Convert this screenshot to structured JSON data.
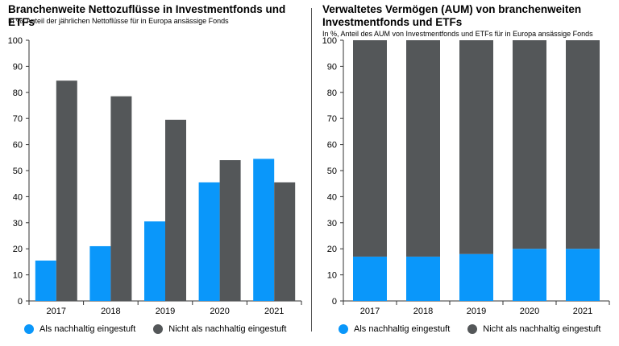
{
  "colors": {
    "sustainable": "#0a97fa",
    "not_sustainable": "#545759"
  },
  "legend": {
    "sustainable": "Als nachhaltig eingestuft",
    "not_sustainable": "Nicht als nachhaltig eingestuft"
  },
  "chart_data": [
    {
      "type": "bar",
      "title": "Branchenweite Nettozuflüsse in Investmentfonds und ETFs",
      "subtitle": "In %, Anteil der jährlichen Nettoflüsse für in Europa ansässige Fonds",
      "categories": [
        "2017",
        "2018",
        "2019",
        "2020",
        "2021"
      ],
      "series": [
        {
          "name": "Als nachhaltig eingestuft",
          "values": [
            15.5,
            21,
            30.5,
            45.5,
            54.5
          ]
        },
        {
          "name": "Nicht als nachhaltig eingestuft",
          "values": [
            84.5,
            78.5,
            69.5,
            54,
            45.5
          ]
        }
      ],
      "ylim": [
        0,
        100
      ],
      "yticks": [
        0,
        10,
        20,
        30,
        40,
        50,
        60,
        70,
        80,
        90,
        100
      ],
      "grid": false,
      "legend_position": "bottom"
    },
    {
      "type": "bar",
      "stacked": true,
      "title": "Verwaltetes Vermögen (AUM) von branchenweiten Investmentfonds und ETFs",
      "subtitle": "In %, Anteil des AUM von Investmentfonds und ETFs für in Europa ansässige Fonds",
      "categories": [
        "2017",
        "2018",
        "2019",
        "2020",
        "2021"
      ],
      "series": [
        {
          "name": "Als nachhaltig eingestuft",
          "values": [
            17,
            17,
            18,
            20,
            20
          ]
        },
        {
          "name": "Nicht als nachhaltig eingestuft",
          "values": [
            83,
            83,
            82,
            80,
            80
          ]
        }
      ],
      "ylim": [
        0,
        100
      ],
      "yticks": [
        0,
        10,
        20,
        30,
        40,
        50,
        60,
        70,
        80,
        90,
        100
      ],
      "grid": false,
      "legend_position": "bottom"
    }
  ]
}
